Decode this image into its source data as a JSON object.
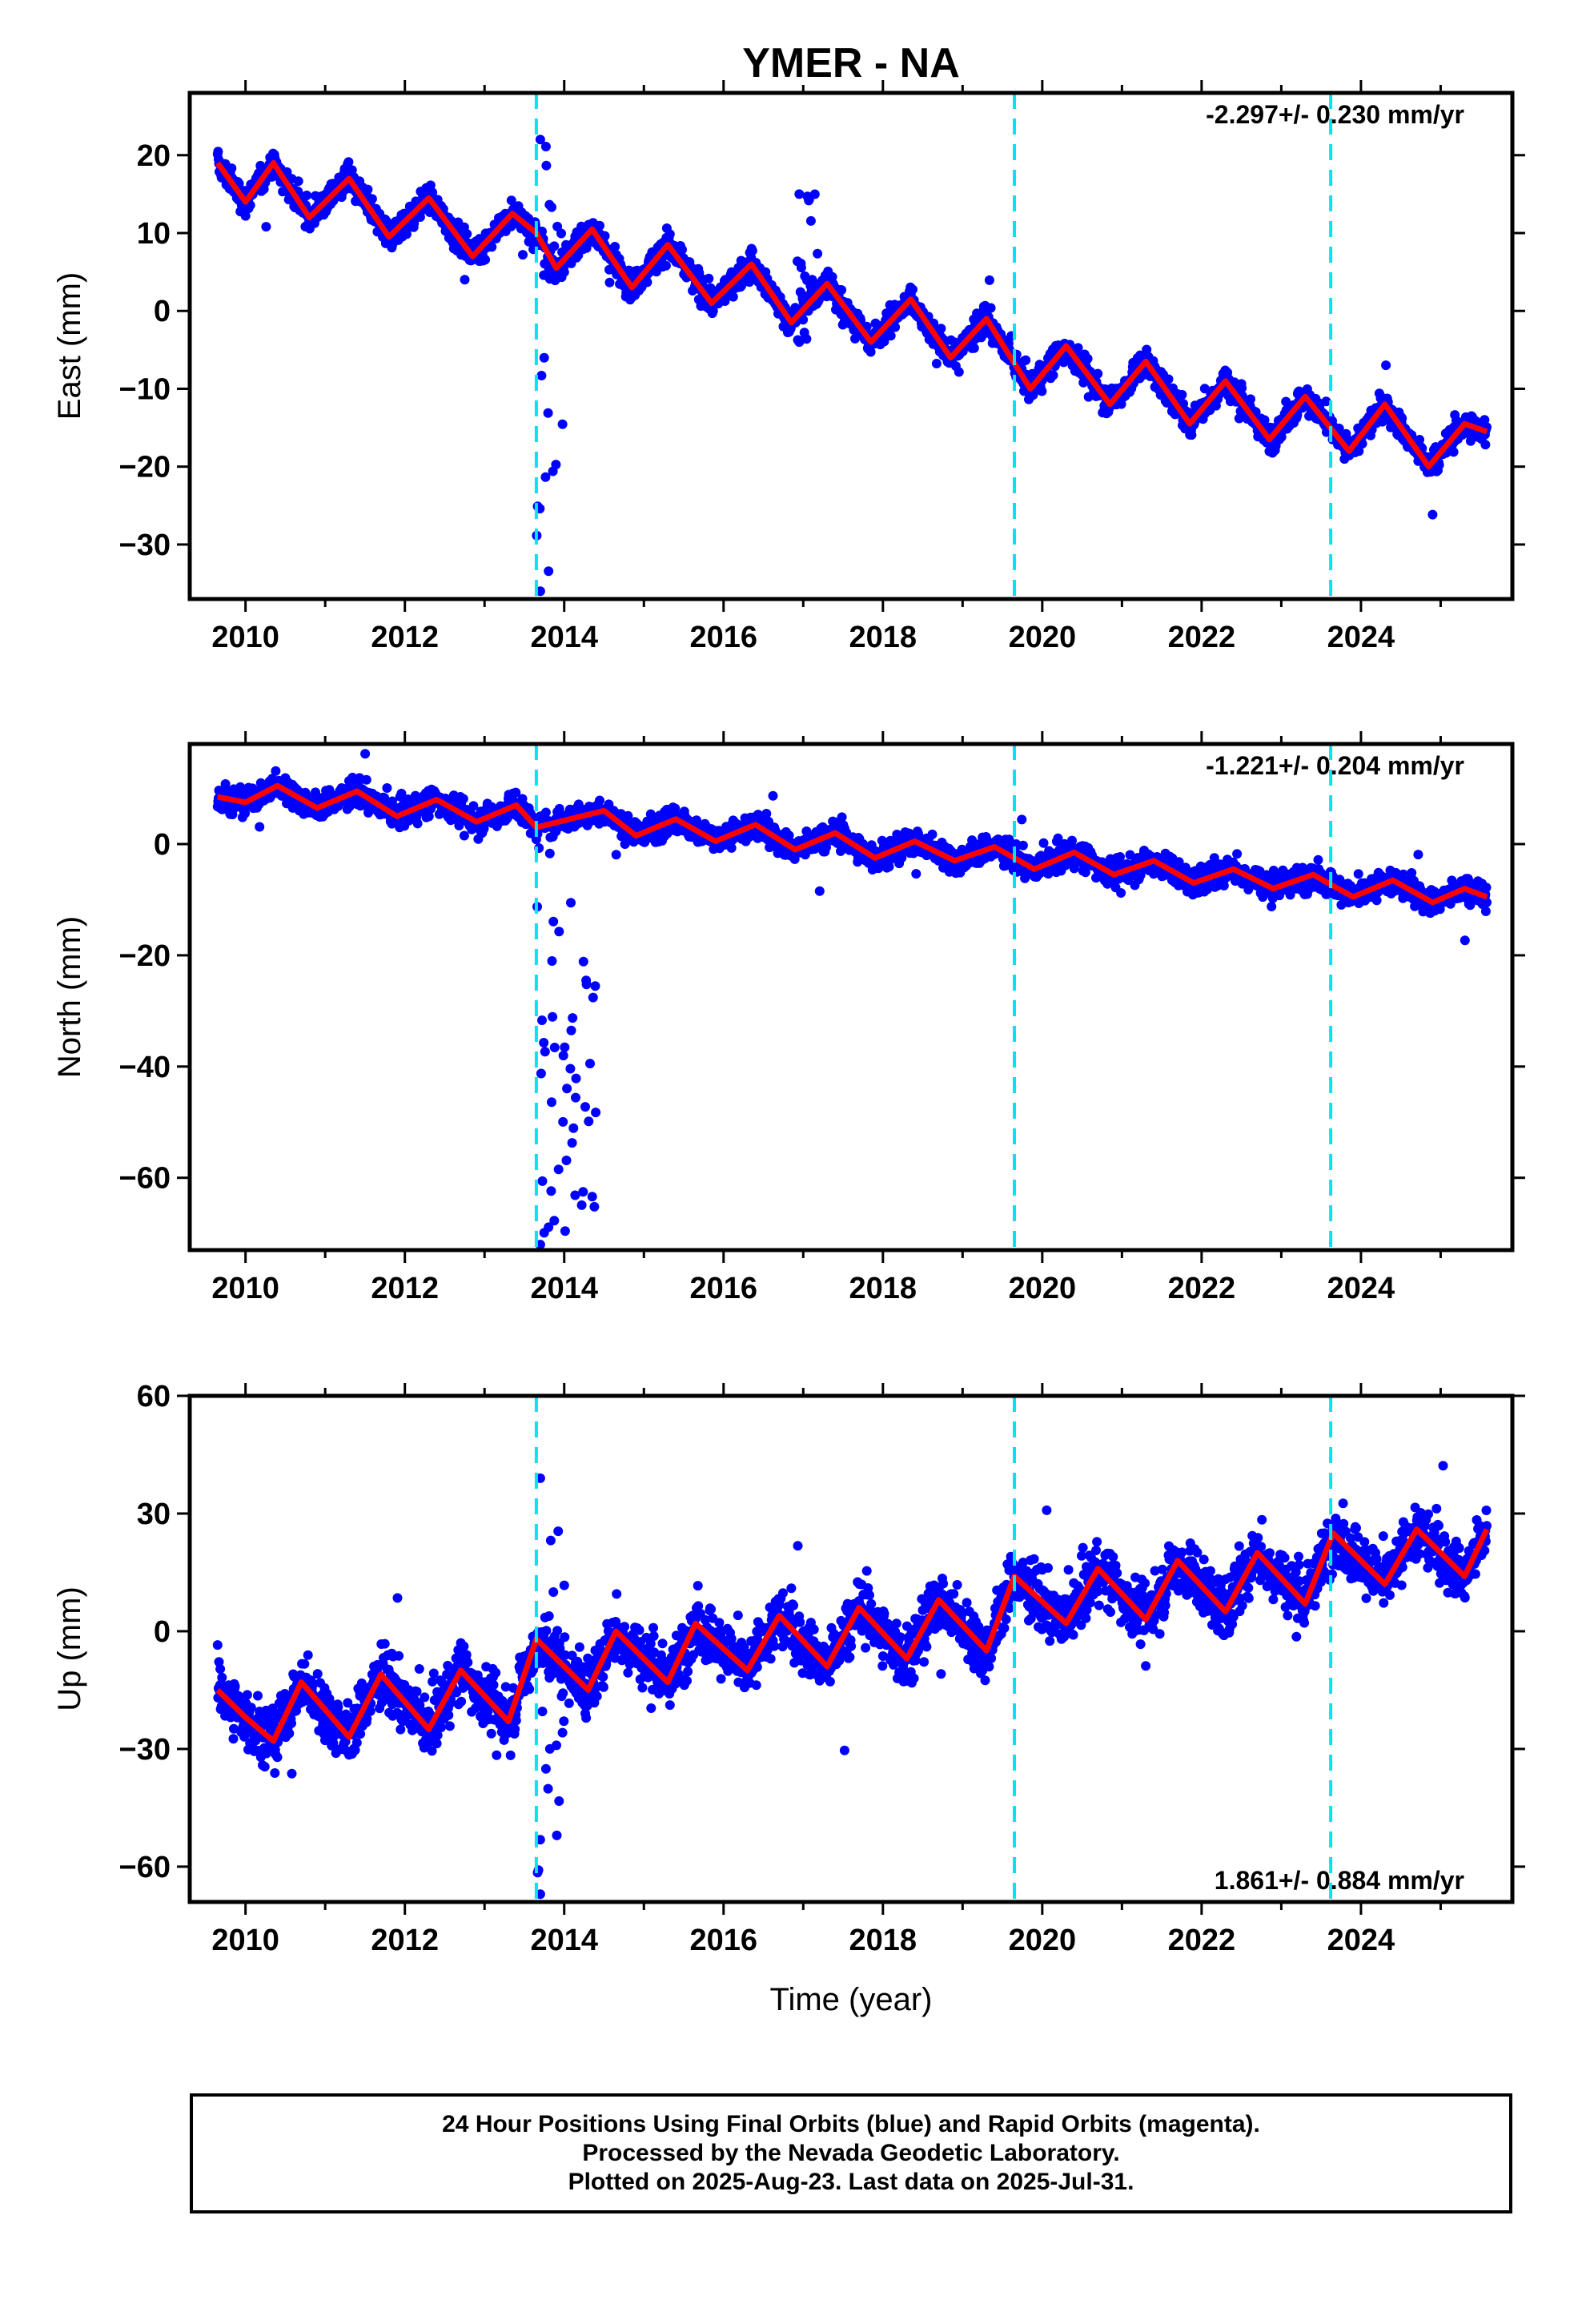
{
  "title": "YMER - NA",
  "xlabel": "Time (year)",
  "footer": {
    "line1": "24 Hour Positions Using Final Orbits (blue) and Rapid Orbits (magenta).",
    "line2": "Processed by the Nevada Geodetic Laboratory.",
    "line3": "Plotted on 2025-Aug-23. Last data on 2025-Jul-31."
  },
  "colors": {
    "points": "#0000ff",
    "fit": "#ff0000",
    "events": "#00e5ee",
    "frame": "#000000"
  },
  "chart_data": [
    {
      "type": "scatter",
      "ylabel": "East (mm)",
      "rate_text": "-2.297+/- 0.230 mm/yr",
      "rate_position": "top-right",
      "xlim": [
        2009.3,
        2025.9
      ],
      "ylim": [
        -37,
        28
      ],
      "x_ticks": [
        2010,
        2012,
        2014,
        2016,
        2018,
        2020,
        2022,
        2024
      ],
      "x_ticklabels": [
        "2010",
        "2012",
        "2014",
        "2016",
        "2018",
        "2020",
        "2022",
        "2024"
      ],
      "y_ticks": [
        20,
        10,
        0,
        -10,
        -20,
        -30
      ],
      "y_ticklabels": [
        "20",
        "10",
        "0",
        "−10",
        "−20",
        "−30"
      ],
      "event_lines": [
        2013.65,
        2019.65,
        2023.62
      ],
      "series": [
        {
          "role": "daily positions (final orbits)",
          "color": "#0000ff",
          "trend": {
            "x0": 2009.65,
            "y0": 17.5,
            "x1": 2025.58,
            "y1": -15.0
          },
          "annual_amplitude_mm": 3.5,
          "scatter_mm": 1.6,
          "transients": [
            {
              "x_start": 2013.65,
              "x_end": 2014.0,
              "y_range": [
                -36,
                22
              ],
              "note": "post-seismic excursion"
            },
            {
              "x_start": 2016.9,
              "x_end": 2017.2,
              "y_range": [
                -4,
                15
              ],
              "note": "noisy interval"
            }
          ]
        },
        {
          "role": "model fit",
          "color": "#ff0000",
          "x": [
            2009.65,
            2010.0,
            2010.35,
            2010.8,
            2011.3,
            2011.8,
            2012.3,
            2012.85,
            2013.35,
            2013.65,
            2013.9,
            2014.35,
            2014.85,
            2015.3,
            2015.85,
            2016.35,
            2016.85,
            2017.3,
            2017.85,
            2018.35,
            2018.85,
            2019.3,
            2019.85,
            2020.3,
            2020.85,
            2021.3,
            2021.85,
            2022.3,
            2022.85,
            2023.3,
            2023.85,
            2024.3,
            2024.85,
            2025.3,
            2025.58
          ],
          "y": [
            19.0,
            14.0,
            19.0,
            12.0,
            17.0,
            9.5,
            14.5,
            7.0,
            12.5,
            10.0,
            5.5,
            10.5,
            3.0,
            8.5,
            1.0,
            6.0,
            -1.5,
            3.5,
            -4.0,
            1.5,
            -6.0,
            -1.0,
            -10.0,
            -4.5,
            -12.0,
            -6.5,
            -14.5,
            -9.0,
            -16.5,
            -11.0,
            -18.0,
            -12.0,
            -20.0,
            -14.5,
            -15.5
          ]
        }
      ]
    },
    {
      "type": "scatter",
      "ylabel": "North (mm)",
      "rate_text": "-1.221+/- 0.204 mm/yr",
      "rate_position": "top-right",
      "xlim": [
        2009.3,
        2025.9
      ],
      "ylim": [
        -73,
        18
      ],
      "x_ticks": [
        2010,
        2012,
        2014,
        2016,
        2018,
        2020,
        2022,
        2024
      ],
      "x_ticklabels": [
        "2010",
        "2012",
        "2014",
        "2016",
        "2018",
        "2020",
        "2022",
        "2024"
      ],
      "y_ticks": [
        0,
        -20,
        -40,
        -60
      ],
      "y_ticklabels": [
        "0",
        "−20",
        "−40",
        "−60"
      ],
      "event_lines": [
        2013.65,
        2019.65,
        2023.62
      ],
      "series": [
        {
          "role": "daily positions (final orbits)",
          "color": "#0000ff",
          "trend": {
            "x0": 2009.65,
            "y0": 9.0,
            "x1": 2025.58,
            "y1": -9.0
          },
          "annual_amplitude_mm": 1.6,
          "scatter_mm": 2.2,
          "transients": [
            {
              "x_start": 2013.65,
              "x_end": 2014.4,
              "y_range": [
                -72,
                5
              ],
              "note": "post-seismic excursion"
            }
          ]
        },
        {
          "role": "model fit",
          "color": "#ff0000",
          "x": [
            2009.65,
            2010.0,
            2010.4,
            2010.9,
            2011.4,
            2011.9,
            2012.4,
            2012.9,
            2013.4,
            2013.65,
            2014.5,
            2014.9,
            2015.4,
            2015.9,
            2016.4,
            2016.9,
            2017.4,
            2017.9,
            2018.4,
            2018.9,
            2019.4,
            2019.9,
            2020.4,
            2020.9,
            2021.4,
            2021.9,
            2022.4,
            2022.9,
            2023.4,
            2023.9,
            2024.4,
            2024.9,
            2025.3,
            2025.58
          ],
          "y": [
            8.5,
            7.5,
            10.5,
            6.5,
            9.5,
            5.0,
            8.0,
            4.0,
            7.0,
            3.0,
            6.0,
            1.5,
            4.5,
            0.5,
            3.5,
            -1.0,
            2.0,
            -2.5,
            0.5,
            -3.0,
            -0.5,
            -4.5,
            -1.5,
            -5.5,
            -3.0,
            -7.0,
            -4.5,
            -8.0,
            -5.5,
            -9.5,
            -6.5,
            -10.5,
            -8.0,
            -9.5
          ]
        }
      ]
    },
    {
      "type": "scatter",
      "ylabel": "Up (mm)",
      "rate_text": "1.861+/- 0.884 mm/yr",
      "rate_position": "bottom-right",
      "xlim": [
        2009.3,
        2025.9
      ],
      "ylim": [
        -69,
        60
      ],
      "x_ticks": [
        2010,
        2012,
        2014,
        2016,
        2018,
        2020,
        2022,
        2024
      ],
      "x_ticklabels": [
        "2010",
        "2012",
        "2014",
        "2016",
        "2018",
        "2020",
        "2022",
        "2024"
      ],
      "y_ticks": [
        60,
        30,
        0,
        -30,
        -60
      ],
      "y_ticklabels": [
        "60",
        "30",
        "0",
        "−30",
        "−60"
      ],
      "event_lines": [
        2013.65,
        2019.65,
        2023.62
      ],
      "series": [
        {
          "role": "daily positions (final orbits)",
          "color": "#0000ff",
          "trend": {
            "x0": 2009.65,
            "y0": -18.0,
            "x1": 2025.58,
            "y1": 25.0
          },
          "annual_amplitude_mm": 6.0,
          "scatter_mm": 7.0,
          "transients": [
            {
              "x_start": 2013.65,
              "x_end": 2014.0,
              "y_range": [
                -67,
                39
              ],
              "note": "post-seismic excursion"
            }
          ]
        },
        {
          "role": "model fit",
          "color": "#ff0000",
          "x": [
            2009.65,
            2010.0,
            2010.35,
            2010.7,
            2011.3,
            2011.7,
            2012.3,
            2012.7,
            2013.3,
            2013.65,
            2014.3,
            2014.65,
            2015.3,
            2015.65,
            2016.3,
            2016.7,
            2017.3,
            2017.7,
            2018.3,
            2018.7,
            2019.3,
            2019.65,
            2020.3,
            2020.7,
            2021.3,
            2021.7,
            2022.3,
            2022.7,
            2023.3,
            2023.65,
            2024.3,
            2024.7,
            2025.3,
            2025.58
          ],
          "y": [
            -15,
            -22,
            -28,
            -13,
            -27,
            -11,
            -25,
            -10,
            -23,
            -2,
            -15,
            0,
            -13,
            2,
            -10,
            4,
            -9,
            6,
            -7,
            8,
            -5,
            14,
            2,
            16,
            3,
            18,
            5,
            20,
            7,
            25,
            12,
            26,
            14,
            26
          ]
        }
      ]
    }
  ]
}
